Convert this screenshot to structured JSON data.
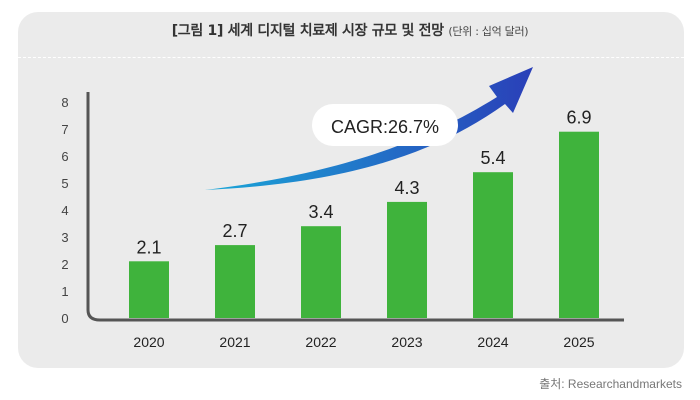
{
  "title": "[그림 1] 세계 디지털 치료제 시장 규모 및 전망",
  "unit": "(단위 : 십억 달러)",
  "source": "출처: Researchandmarkets",
  "colors": {
    "bar": "#3fb33c",
    "axis": "#555555",
    "panel": "#ebebeb",
    "arrow_start": "#1aa7d8",
    "arrow_end": "#2a3fb8"
  },
  "chart_data": {
    "type": "bar",
    "categories": [
      "2020",
      "2021",
      "2022",
      "2023",
      "2024",
      "2025"
    ],
    "values": [
      2.1,
      2.7,
      3.4,
      4.3,
      5.4,
      6.9
    ],
    "data_labels": [
      "2.1",
      "2.7",
      "3.4",
      "4.3",
      "5.4",
      "6.9"
    ],
    "y_ticks": [
      "0",
      "1",
      "2",
      "3",
      "4",
      "5",
      "6",
      "7",
      "8"
    ],
    "ylim": [
      0,
      8
    ],
    "grid": false,
    "annotation": "CAGR:26.7%"
  }
}
